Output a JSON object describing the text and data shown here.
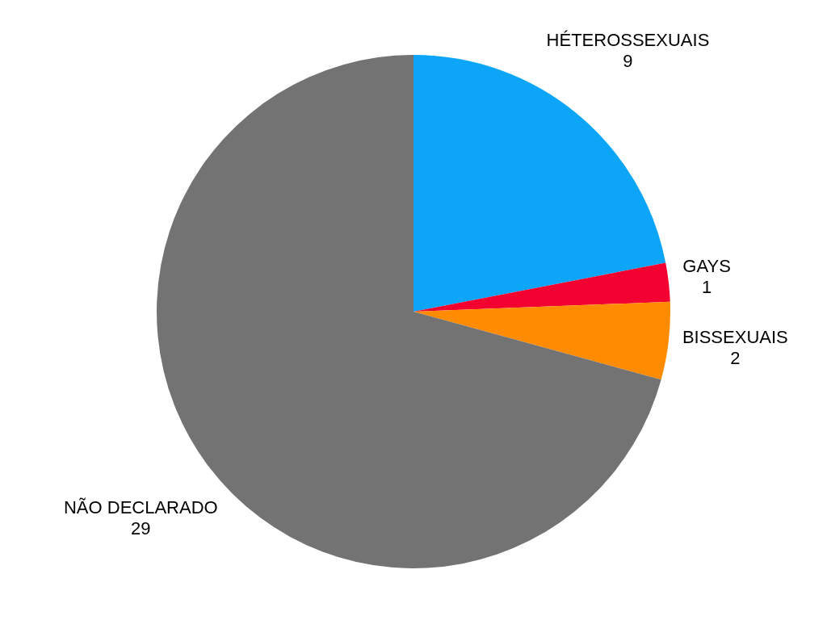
{
  "chart_data": {
    "type": "pie",
    "categories": [
      "HÉTEROSSEXUAIS",
      "GAYS",
      "BISSEXUAIS",
      "NÃO DECLARADO"
    ],
    "values": [
      9,
      1,
      2,
      29
    ],
    "colors": [
      "#0ca5f8",
      "#f20030",
      "#ff8c00",
      "#737373"
    ],
    "data_labels": true,
    "legend": false
  }
}
